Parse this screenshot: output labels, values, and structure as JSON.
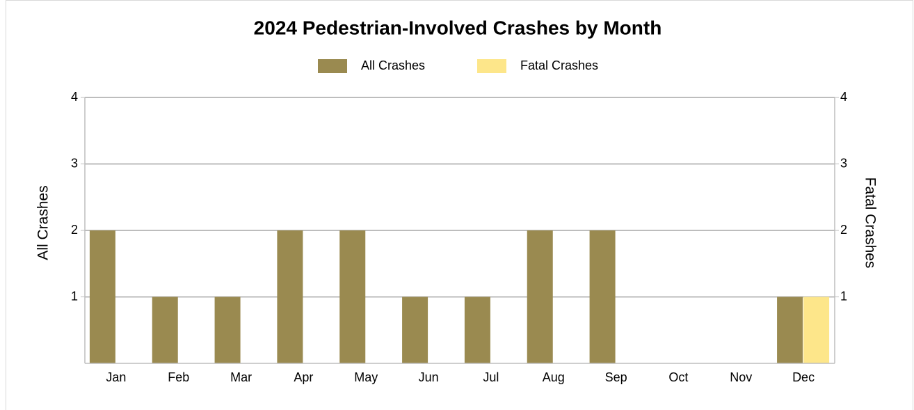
{
  "chart_data": {
    "type": "bar",
    "title": "2024 Pedestrian-Involved Crashes by Month",
    "categories": [
      "Jan",
      "Feb",
      "Mar",
      "Apr",
      "May",
      "Jun",
      "Jul",
      "Aug",
      "Sep",
      "Oct",
      "Nov",
      "Dec"
    ],
    "series": [
      {
        "name": "All Crashes",
        "color": "#9a8a50",
        "values": [
          2,
          1,
          1,
          2,
          2,
          1,
          1,
          2,
          2,
          0,
          0,
          1
        ]
      },
      {
        "name": "Fatal Crashes",
        "color": "#fde68a",
        "axis": "y2",
        "values": [
          0,
          0,
          0,
          0,
          0,
          0,
          0,
          0,
          0,
          0,
          0,
          1
        ]
      }
    ],
    "ylabel": "All Crashes",
    "y2label": "Fatal Crashes",
    "ylim": [
      0,
      4
    ],
    "yticks": [
      1,
      2,
      3,
      4
    ],
    "y2lim": [
      0,
      4
    ],
    "y2ticks": [
      1,
      2,
      3,
      4
    ],
    "grid": true,
    "legend": "top"
  }
}
